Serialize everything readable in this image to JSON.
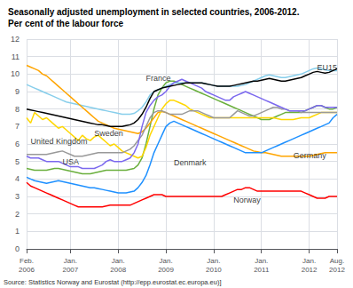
{
  "chart_data": {
    "type": "line",
    "title": "Seasonally adjusted unemployment in selected countries, 2006-2012.",
    "subtitle": "Per cent of the labour force",
    "source": "Source: Statistics Norway and Eurostat (http://epp.eurostat.ec.europa.eu)]",
    "categories": [
      "Feb.\n2006",
      null,
      null,
      null,
      null,
      null,
      null,
      null,
      null,
      null,
      null,
      "Jan.\n2007",
      null,
      null,
      null,
      null,
      null,
      null,
      null,
      null,
      null,
      null,
      null,
      "Jan.\n2008",
      null,
      null,
      null,
      null,
      null,
      null,
      null,
      null,
      null,
      null,
      null,
      "Jan.\n2009",
      null,
      null,
      null,
      null,
      null,
      null,
      null,
      null,
      null,
      null,
      null,
      "Jan.\n2010",
      null,
      null,
      null,
      null,
      null,
      null,
      null,
      null,
      null,
      null,
      null,
      "Jan.\n2011",
      null,
      null,
      null,
      null,
      null,
      null,
      null,
      null,
      null,
      null,
      null,
      "Jan.\n2012",
      null,
      null,
      null,
      null,
      null,
      null,
      "Aug.\n2012"
    ],
    "ylim": [
      0,
      12
    ],
    "yticks": [
      0,
      1,
      2,
      3,
      4,
      5,
      6,
      7,
      8,
      9,
      10,
      11,
      12
    ],
    "grid": true,
    "series": [
      {
        "color": "#6AAF3D",
        "values": [
          4.6,
          4.55,
          4.5,
          4.5,
          4.5,
          4.5,
          4.55,
          4.6,
          4.6,
          4.55,
          4.5,
          4.45,
          4.4,
          4.35,
          4.3,
          4.3,
          4.3,
          4.35,
          4.4,
          4.45,
          4.5,
          4.5,
          4.5,
          4.5,
          4.5,
          4.5,
          4.55,
          4.6,
          4.8,
          5.2,
          6.0,
          7.0,
          8.0,
          8.8,
          9.2,
          9.5,
          9.6,
          9.6,
          9.5,
          9.4,
          9.3,
          9.2,
          9.1,
          9.0,
          8.9,
          8.8,
          8.7,
          8.6,
          8.5,
          8.4,
          8.3,
          8.2,
          8.1,
          8.0,
          7.9,
          7.8,
          7.7,
          7.6,
          7.5,
          7.4,
          7.4,
          7.4,
          7.5,
          7.6,
          7.7,
          7.8,
          7.8,
          7.8,
          7.8,
          7.8,
          7.9,
          8.0,
          8.1,
          8.2,
          8.2,
          8.1,
          8.0,
          8.0,
          8.1
        ]
      },
      {
        "name": "France",
        "color": "#87CEEB",
        "values": [
          9.4,
          9.3,
          9.2,
          9.1,
          9.0,
          8.9,
          8.8,
          8.7,
          8.6,
          8.5,
          8.4,
          8.35,
          8.3,
          8.25,
          8.2,
          8.15,
          8.1,
          8.05,
          8.0,
          7.95,
          7.9,
          7.85,
          7.8,
          7.75,
          7.7,
          7.7,
          7.7,
          7.75,
          7.9,
          8.1,
          8.4,
          8.8,
          9.0,
          9.1,
          9.2,
          9.3,
          9.4,
          9.5,
          9.5,
          9.5,
          9.5,
          9.5,
          9.5,
          9.5,
          9.5,
          9.45,
          9.4,
          9.35,
          9.3,
          9.3,
          9.3,
          9.3,
          9.3,
          9.3,
          9.35,
          9.4,
          9.5,
          9.6,
          9.7,
          9.8,
          9.9,
          9.95,
          9.9,
          9.85,
          9.8,
          9.8,
          9.85,
          9.9,
          9.95,
          10.0,
          10.1,
          10.2,
          10.3,
          10.35,
          10.3,
          10.25,
          10.2,
          10.2,
          10.2
        ]
      },
      {
        "name": "Germany",
        "color": "#FFA500",
        "values": [
          10.5,
          10.4,
          10.3,
          10.2,
          10.0,
          9.9,
          9.7,
          9.5,
          9.3,
          9.1,
          8.9,
          8.7,
          8.5,
          8.3,
          8.1,
          7.9,
          7.7,
          7.5,
          7.3,
          7.2,
          7.1,
          7.0,
          6.9,
          6.85,
          6.8,
          6.75,
          6.7,
          6.65,
          6.6,
          6.7,
          6.9,
          7.2,
          7.5,
          7.8,
          7.85,
          7.8,
          7.7,
          7.6,
          7.5,
          7.4,
          7.3,
          7.2,
          7.1,
          7.0,
          6.9,
          6.8,
          6.7,
          6.6,
          6.5,
          6.4,
          6.3,
          6.2,
          6.1,
          6.0,
          5.9,
          5.8,
          5.7,
          5.6,
          5.55,
          5.5,
          5.5,
          5.45,
          5.4,
          5.35,
          5.3,
          5.3,
          5.3,
          5.3,
          5.3,
          5.3,
          5.3,
          5.3,
          5.35,
          5.4,
          5.45,
          5.5,
          5.5,
          5.5,
          5.5
        ]
      },
      {
        "name": "Sweden",
        "color": "#FFD700",
        "values": [
          7.5,
          7.2,
          7.8,
          7.6,
          7.4,
          7.5,
          7.3,
          7.1,
          6.9,
          7.0,
          6.8,
          6.6,
          6.4,
          6.2,
          6.5,
          6.3,
          6.2,
          6.4,
          6.5,
          6.3,
          6.1,
          5.9,
          6.0,
          5.8,
          5.6,
          5.5,
          5.4,
          5.3,
          5.2,
          5.3,
          5.8,
          6.5,
          7.0,
          7.5,
          8.0,
          8.3,
          8.5,
          8.5,
          8.4,
          8.3,
          8.2,
          8.0,
          7.9,
          7.8,
          7.7,
          7.6,
          7.5,
          7.5,
          7.5,
          7.5,
          7.5,
          7.5,
          7.5,
          7.5,
          7.5,
          7.5,
          7.5,
          7.5,
          7.5,
          7.5,
          7.5,
          7.5,
          7.5,
          7.45,
          7.4,
          7.4,
          7.4,
          7.4,
          7.45,
          7.5,
          7.5,
          7.5,
          7.6,
          7.7,
          7.8,
          7.8,
          7.8,
          7.8,
          7.8
        ]
      },
      {
        "name": "Denmark",
        "color": "#1E90FF",
        "values": [
          4.1,
          4.0,
          3.9,
          3.85,
          3.8,
          3.75,
          3.8,
          3.85,
          3.9,
          3.85,
          3.8,
          3.75,
          3.7,
          3.65,
          3.6,
          3.55,
          3.5,
          3.5,
          3.45,
          3.4,
          3.35,
          3.3,
          3.25,
          3.2,
          3.2,
          3.2,
          3.25,
          3.3,
          3.5,
          3.8,
          4.2,
          4.8,
          5.5,
          6.0,
          6.5,
          7.0,
          7.2,
          7.3,
          7.2,
          7.1,
          7.0,
          6.9,
          6.8,
          6.7,
          6.6,
          6.5,
          6.4,
          6.3,
          6.2,
          6.1,
          6.0,
          5.9,
          5.8,
          5.7,
          5.6,
          5.5,
          5.5,
          5.5,
          5.5,
          5.5,
          5.6,
          5.7,
          5.8,
          5.9,
          6.0,
          6.1,
          6.2,
          6.3,
          6.4,
          6.5,
          6.6,
          6.7,
          6.8,
          6.9,
          7.0,
          7.1,
          7.2,
          7.5,
          7.7
        ]
      },
      {
        "name": "United Kingdom",
        "color": "#999999",
        "values": [
          5.4,
          5.4,
          5.4,
          5.4,
          5.4,
          5.4,
          5.45,
          5.5,
          5.55,
          5.6,
          5.5,
          5.4,
          5.3,
          5.3,
          5.3,
          5.35,
          5.4,
          5.45,
          5.5,
          5.5,
          5.5,
          5.5,
          5.5,
          5.5,
          5.5,
          5.6,
          5.7,
          5.9,
          6.2,
          6.5,
          7.0,
          7.5,
          7.8,
          7.9,
          7.9,
          7.8,
          7.7,
          7.7,
          7.7,
          7.7,
          7.8,
          7.9,
          7.9,
          7.9,
          7.8,
          7.7,
          7.6,
          7.5,
          7.5,
          7.5,
          7.5,
          7.5,
          7.7,
          7.9,
          7.8,
          7.7,
          7.6,
          7.6,
          7.7,
          7.8,
          7.9,
          8.0,
          8.1,
          8.1,
          8.0,
          8.0,
          7.9,
          7.9,
          7.9,
          7.8,
          7.8,
          7.8,
          7.8,
          7.8,
          7.8,
          7.8,
          7.8,
          7.8,
          7.8
        ]
      },
      {
        "name": "USA",
        "color": "#7B68EE",
        "values": [
          5.3,
          5.2,
          5.2,
          5.2,
          5.1,
          5.0,
          5.0,
          5.0,
          5.0,
          4.9,
          4.8,
          4.7,
          4.7,
          4.7,
          4.6,
          4.6,
          4.6,
          4.6,
          4.7,
          4.8,
          5.0,
          5.1,
          5.0,
          5.0,
          5.0,
          5.1,
          5.2,
          5.5,
          6.0,
          7.0,
          7.8,
          8.2,
          8.5,
          8.7,
          8.8,
          9.0,
          9.3,
          9.5,
          9.6,
          9.7,
          9.6,
          9.5,
          9.4,
          9.3,
          9.2,
          9.0,
          8.9,
          8.8,
          8.7,
          8.6,
          8.5,
          8.5,
          8.7,
          8.8,
          8.9,
          9.0,
          8.9,
          8.8,
          8.7,
          8.6,
          8.5,
          8.4,
          8.3,
          8.2,
          8.1,
          8.0,
          7.9,
          7.9,
          7.9,
          7.9,
          7.9,
          8.0,
          8.1,
          8.2,
          8.2,
          8.1,
          8.1,
          8.1,
          8.1
        ]
      },
      {
        "name": "Norway",
        "color": "#FF0000",
        "values": [
          3.8,
          3.6,
          3.5,
          3.4,
          3.3,
          3.2,
          3.1,
          3.0,
          2.9,
          2.8,
          2.7,
          2.6,
          2.5,
          2.4,
          2.4,
          2.4,
          2.4,
          2.4,
          2.4,
          2.4,
          2.45,
          2.5,
          2.5,
          2.5,
          2.5,
          2.5,
          2.5,
          2.6,
          2.7,
          2.8,
          2.9,
          3.0,
          3.1,
          3.1,
          3.1,
          3.0,
          3.0,
          3.0,
          3.0,
          3.0,
          3.0,
          3.0,
          3.0,
          3.0,
          3.0,
          3.0,
          3.0,
          3.0,
          3.0,
          3.0,
          3.1,
          3.2,
          3.3,
          3.4,
          3.4,
          3.5,
          3.5,
          3.4,
          3.3,
          3.3,
          3.3,
          3.3,
          3.3,
          3.3,
          3.3,
          3.3,
          3.3,
          3.3,
          3.3,
          3.3,
          3.2,
          3.1,
          3.0,
          2.9,
          2.9,
          2.9,
          3.0,
          3.0,
          3.0
        ]
      },
      {
        "name": "EU15",
        "color": "#000000",
        "values": [
          8.0,
          7.95,
          7.9,
          7.85,
          7.8,
          7.75,
          7.7,
          7.65,
          7.6,
          7.55,
          7.5,
          7.45,
          7.4,
          7.35,
          7.3,
          7.25,
          7.2,
          7.15,
          7.1,
          7.1,
          7.05,
          7.0,
          7.0,
          7.0,
          7.0,
          7.05,
          7.1,
          7.2,
          7.4,
          7.7,
          8.1,
          8.6,
          9.0,
          9.1,
          9.2,
          9.25,
          9.3,
          9.35,
          9.4,
          9.45,
          9.5,
          9.5,
          9.5,
          9.5,
          9.5,
          9.45,
          9.4,
          9.35,
          9.3,
          9.3,
          9.3,
          9.3,
          9.35,
          9.4,
          9.45,
          9.5,
          9.55,
          9.6,
          9.6,
          9.65,
          9.7,
          9.75,
          9.7,
          9.65,
          9.6,
          9.6,
          9.65,
          9.7,
          9.75,
          9.8,
          9.9,
          10.0,
          10.1,
          10.15,
          10.1,
          10.05,
          10.1,
          10.2,
          10.3
        ]
      }
    ],
    "annotations": [
      {
        "text": "EU15",
        "x": 73,
        "y": 10.1
      },
      {
        "text": "France",
        "x": 30,
        "y": 9.5
      },
      {
        "text": "Germany",
        "x": 67,
        "y": 5.05
      },
      {
        "text": "Sweden",
        "x": 17,
        "y": 6.35
      },
      {
        "text": "Denmark",
        "x": 37,
        "y": 4.65
      },
      {
        "text": "United Kingdom",
        "x": 1,
        "y": 5.85
      },
      {
        "text": "USA",
        "x": 9,
        "y": 4.7
      },
      {
        "text": "Norway",
        "x": 52,
        "y": 2.5
      }
    ]
  }
}
